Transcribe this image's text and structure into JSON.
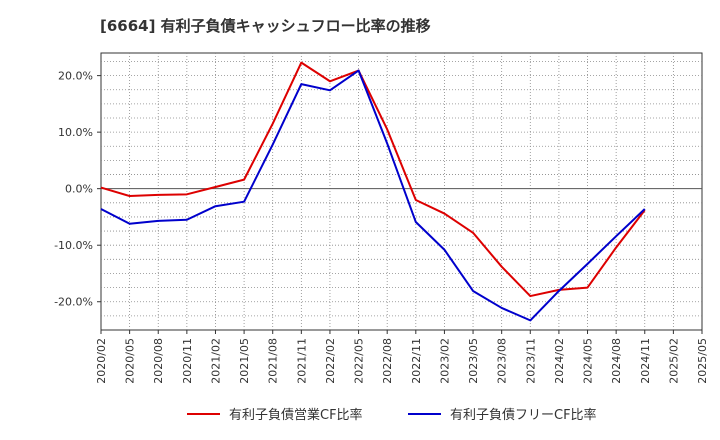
{
  "chart_data": {
    "type": "line",
    "title": "[6664]  有利子負債キャッシュフロー比率の推移",
    "x": [
      "2020/02",
      "2020/05",
      "2020/08",
      "2020/11",
      "2021/02",
      "2021/05",
      "2021/08",
      "2021/11",
      "2022/02",
      "2022/05",
      "2022/08",
      "2022/11",
      "2023/02",
      "2023/05",
      "2023/08",
      "2023/11",
      "2024/02",
      "2024/05",
      "2024/08",
      "2024/11",
      "2025/02",
      "2025/05"
    ],
    "yticks": [
      20,
      10,
      0,
      -10,
      -20
    ],
    "ytick_labels": [
      "20.0%",
      "10.0%",
      "0.0%",
      "-10.0%",
      "-20.0%"
    ],
    "ylim": [
      -25,
      24
    ],
    "grid": true,
    "legend_position": "bottom",
    "series": [
      {
        "name": "有利子負債営業CF比率",
        "color": "#dd0000",
        "values": [
          0.2,
          -1.3,
          -1.1,
          -1.0,
          0.3,
          1.6,
          11.5,
          22.3,
          19.0,
          20.9,
          10.5,
          -2.0,
          -4.4,
          -7.8,
          -13.8,
          -19.0,
          -17.9,
          -17.5,
          -10.4,
          -3.8,
          null,
          null
        ]
      },
      {
        "name": "有利子負債フリーCF比率",
        "color": "#0000cc",
        "values": [
          -3.6,
          -6.2,
          -5.7,
          -5.5,
          -3.1,
          -2.3,
          7.8,
          18.5,
          17.4,
          20.9,
          8.0,
          -5.9,
          -10.8,
          -18.1,
          -21.1,
          -23.3,
          -18.1,
          -13.3,
          -8.4,
          -3.6,
          null,
          null
        ]
      }
    ]
  }
}
